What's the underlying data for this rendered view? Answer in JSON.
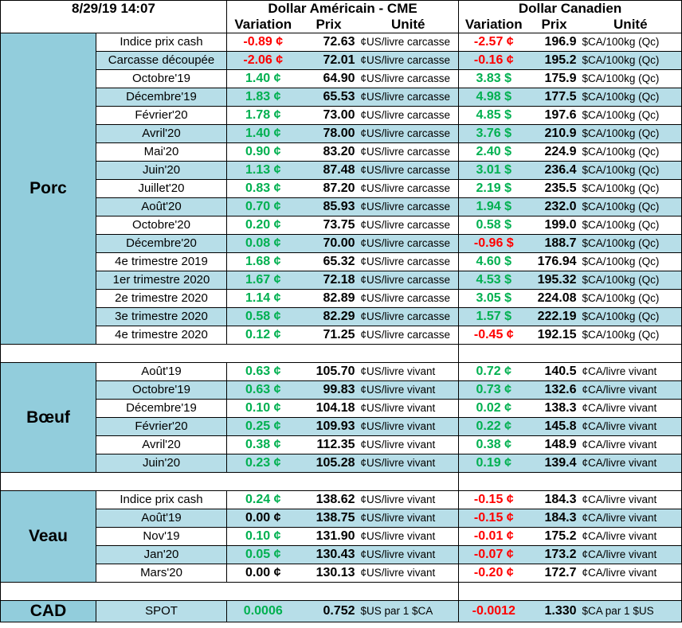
{
  "header": {
    "datetime": "8/29/19 14:07",
    "us_title": "Dollar Américain - CME",
    "ca_title": "Dollar Canadien",
    "col_variation": "Variation",
    "col_prix": "Prix",
    "col_unite": "Unité"
  },
  "colors": {
    "positive": "#00b050",
    "negative": "#ff0000",
    "band": "#b7dee8",
    "section": "#92cddc"
  },
  "sections": [
    {
      "name": "Porc",
      "rows": [
        {
          "label": "Indice prix cash",
          "us_var": "-0.89 ¢",
          "us_price": "72.63",
          "us_unit": "¢US/livre carcasse",
          "ca_var": "-2.57 ¢",
          "ca_price": "196.9",
          "ca_unit": "$CA/100kg (Qc)"
        },
        {
          "label": "Carcasse découpée",
          "us_var": "-2.06 ¢",
          "us_price": "72.01",
          "us_unit": "¢US/livre carcasse",
          "ca_var": "-0.16 ¢",
          "ca_price": "195.2",
          "ca_unit": "$CA/100kg (Qc)"
        },
        {
          "label": "Octobre'19",
          "us_var": "1.40 ¢",
          "us_price": "64.90",
          "us_unit": "¢US/livre carcasse",
          "ca_var": "3.83 $",
          "ca_price": "175.9",
          "ca_unit": "$CA/100kg (Qc)"
        },
        {
          "label": "Décembre'19",
          "us_var": "1.83 ¢",
          "us_price": "65.53",
          "us_unit": "¢US/livre carcasse",
          "ca_var": "4.98 $",
          "ca_price": "177.5",
          "ca_unit": "$CA/100kg (Qc)"
        },
        {
          "label": "Février'20",
          "us_var": "1.78 ¢",
          "us_price": "73.00",
          "us_unit": "¢US/livre carcasse",
          "ca_var": "4.85 $",
          "ca_price": "197.6",
          "ca_unit": "$CA/100kg (Qc)"
        },
        {
          "label": "Avril'20",
          "us_var": "1.40 ¢",
          "us_price": "78.00",
          "us_unit": "¢US/livre carcasse",
          "ca_var": "3.76 $",
          "ca_price": "210.9",
          "ca_unit": "$CA/100kg (Qc)"
        },
        {
          "label": "Mai'20",
          "us_var": "0.90 ¢",
          "us_price": "83.20",
          "us_unit": "¢US/livre carcasse",
          "ca_var": "2.40 $",
          "ca_price": "224.9",
          "ca_unit": "$CA/100kg (Qc)"
        },
        {
          "label": "Juin'20",
          "us_var": "1.13 ¢",
          "us_price": "87.48",
          "us_unit": "¢US/livre carcasse",
          "ca_var": "3.01 $",
          "ca_price": "236.4",
          "ca_unit": "$CA/100kg (Qc)"
        },
        {
          "label": "Juillet'20",
          "us_var": "0.83 ¢",
          "us_price": "87.20",
          "us_unit": "¢US/livre carcasse",
          "ca_var": "2.19 $",
          "ca_price": "235.5",
          "ca_unit": "$CA/100kg (Qc)"
        },
        {
          "label": "Août'20",
          "us_var": "0.70 ¢",
          "us_price": "85.93",
          "us_unit": "¢US/livre carcasse",
          "ca_var": "1.94 $",
          "ca_price": "232.0",
          "ca_unit": "$CA/100kg (Qc)"
        },
        {
          "label": "Octobre'20",
          "us_var": "0.20 ¢",
          "us_price": "73.75",
          "us_unit": "¢US/livre carcasse",
          "ca_var": "0.58 $",
          "ca_price": "199.0",
          "ca_unit": "$CA/100kg (Qc)"
        },
        {
          "label": "Décembre'20",
          "us_var": "0.08 ¢",
          "us_price": "70.00",
          "us_unit": "¢US/livre carcasse",
          "ca_var": "-0.96 $",
          "ca_price": "188.7",
          "ca_unit": "$CA/100kg (Qc)"
        },
        {
          "label": "4e trimestre 2019",
          "us_var": "1.68 ¢",
          "us_price": "65.32",
          "us_unit": "¢US/livre carcasse",
          "ca_var": "4.60 $",
          "ca_price": "176.94",
          "ca_unit": "$CA/100kg (Qc)"
        },
        {
          "label": "1er trimestre 2020",
          "us_var": "1.67 ¢",
          "us_price": "72.18",
          "us_unit": "¢US/livre carcasse",
          "ca_var": "4.53 $",
          "ca_price": "195.32",
          "ca_unit": "$CA/100kg (Qc)"
        },
        {
          "label": "2e trimestre 2020",
          "us_var": "1.14 ¢",
          "us_price": "82.89",
          "us_unit": "¢US/livre carcasse",
          "ca_var": "3.05 $",
          "ca_price": "224.08",
          "ca_unit": "$CA/100kg (Qc)"
        },
        {
          "label": "3e trimestre 2020",
          "us_var": "0.58 ¢",
          "us_price": "82.29",
          "us_unit": "¢US/livre carcasse",
          "ca_var": "1.57 $",
          "ca_price": "222.19",
          "ca_unit": "$CA/100kg (Qc)"
        },
        {
          "label": "4e trimestre 2020",
          "us_var": "0.12 ¢",
          "us_price": "71.25",
          "us_unit": "¢US/livre carcasse",
          "ca_var": "-0.45 ¢",
          "ca_price": "192.15",
          "ca_unit": "$CA/100kg (Qc)"
        }
      ]
    },
    {
      "name": "Bœuf",
      "rows": [
        {
          "label": "Août'19",
          "us_var": "0.63 ¢",
          "us_price": "105.70",
          "us_unit": "¢US/livre vivant",
          "ca_var": "0.72 ¢",
          "ca_price": "140.5",
          "ca_unit": "¢CA/livre vivant"
        },
        {
          "label": "Octobre'19",
          "us_var": "0.63 ¢",
          "us_price": "99.83",
          "us_unit": "¢US/livre vivant",
          "ca_var": "0.73 ¢",
          "ca_price": "132.6",
          "ca_unit": "¢CA/livre vivant"
        },
        {
          "label": "Décembre'19",
          "us_var": "0.10 ¢",
          "us_price": "104.18",
          "us_unit": "¢US/livre vivant",
          "ca_var": "0.02 ¢",
          "ca_price": "138.3",
          "ca_unit": "¢CA/livre vivant"
        },
        {
          "label": "Février'20",
          "us_var": "0.25 ¢",
          "us_price": "109.93",
          "us_unit": "¢US/livre vivant",
          "ca_var": "0.22 ¢",
          "ca_price": "145.8",
          "ca_unit": "¢CA/livre vivant"
        },
        {
          "label": "Avril'20",
          "us_var": "0.38 ¢",
          "us_price": "112.35",
          "us_unit": "¢US/livre vivant",
          "ca_var": "0.38 ¢",
          "ca_price": "148.9",
          "ca_unit": "¢CA/livre vivant"
        },
        {
          "label": "Juin'20",
          "us_var": "0.23 ¢",
          "us_price": "105.28",
          "us_unit": "¢US/livre vivant",
          "ca_var": "0.19 ¢",
          "ca_price": "139.4",
          "ca_unit": "¢CA/livre vivant"
        }
      ]
    },
    {
      "name": "Veau",
      "rows": [
        {
          "label": "Indice prix cash",
          "us_var": "0.24 ¢",
          "us_price": "138.62",
          "us_unit": "¢US/livre vivant",
          "ca_var": "-0.15 ¢",
          "ca_price": "184.3",
          "ca_unit": "¢CA/livre vivant"
        },
        {
          "label": "Août'19",
          "us_var": "0.00 ¢",
          "us_price": "138.75",
          "us_unit": "¢US/livre vivant",
          "ca_var": "-0.15 ¢",
          "ca_price": "184.3",
          "ca_unit": "¢CA/livre vivant"
        },
        {
          "label": "Nov'19",
          "us_var": "0.10 ¢",
          "us_price": "131.90",
          "us_unit": "¢US/livre vivant",
          "ca_var": "-0.01 ¢",
          "ca_price": "175.2",
          "ca_unit": "¢CA/livre vivant"
        },
        {
          "label": "Jan'20",
          "us_var": "0.05 ¢",
          "us_price": "130.43",
          "us_unit": "¢US/livre vivant",
          "ca_var": "-0.07 ¢",
          "ca_price": "173.2",
          "ca_unit": "¢CA/livre vivant"
        },
        {
          "label": "Mars'20",
          "us_var": "0.00 ¢",
          "us_price": "130.13",
          "us_unit": "¢US/livre vivant",
          "ca_var": "-0.20 ¢",
          "ca_price": "172.7",
          "ca_unit": "¢CA/livre vivant"
        }
      ]
    }
  ],
  "cad": {
    "name": "CAD",
    "label": "SPOT",
    "us_var": "0.0006",
    "us_price": "0.752",
    "us_unit": "$US par 1 $CA",
    "ca_var": "-0.0012",
    "ca_price": "1.330",
    "ca_unit": "$CA par 1 $US"
  }
}
